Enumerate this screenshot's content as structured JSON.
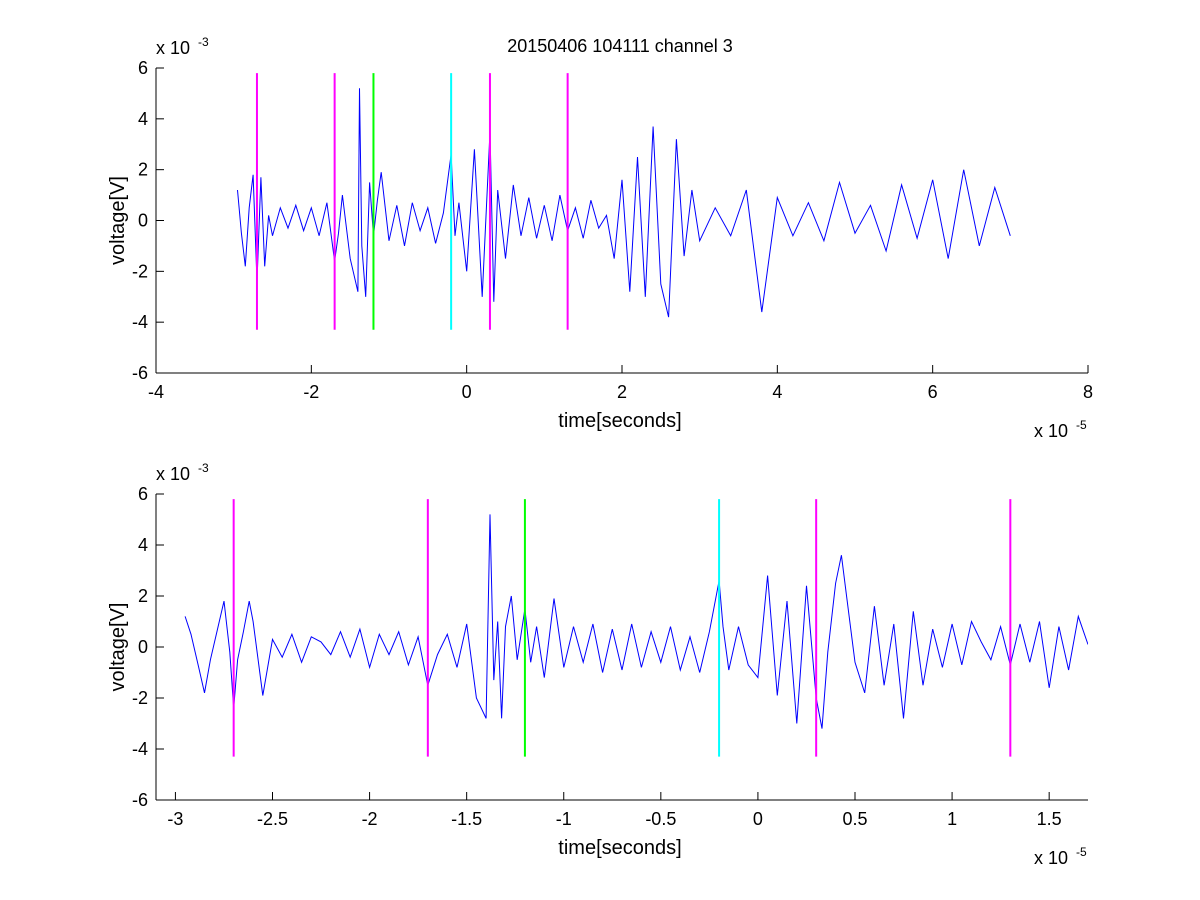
{
  "figure": {
    "title": "20150406 104111 channel 3",
    "colors": {
      "signal": "#0000ff",
      "magenta": "#ff00ff",
      "green": "#00ff00",
      "cyan": "#00ffff"
    }
  },
  "chart_data": [
    {
      "type": "line",
      "title": "20150406 104111 channel 3",
      "xlabel": "time[seconds]",
      "ylabel": "voltage[V]",
      "x_multiplier": "x 10",
      "x_exponent": "-5",
      "y_multiplier": "x 10",
      "y_exponent": "-3",
      "xlim": [
        -4,
        8
      ],
      "ylim": [
        -6,
        6
      ],
      "xticks": [
        -4,
        -2,
        0,
        2,
        4,
        6,
        8
      ],
      "xtick_labels": [
        "-4",
        "-2",
        "0",
        "2",
        "4",
        "6",
        "8"
      ],
      "yticks": [
        -6,
        -4,
        -2,
        0,
        2,
        4,
        6
      ],
      "ytick_labels": [
        "-6",
        "-4",
        "-2",
        "0",
        "2",
        "4",
        "6"
      ],
      "grid": false,
      "series": [
        {
          "color": "#0000ff",
          "x": [
            -2.95,
            -2.9,
            -2.85,
            -2.8,
            -2.75,
            -2.7,
            -2.65,
            -2.6,
            -2.55,
            -2.5,
            -2.4,
            -2.3,
            -2.2,
            -2.1,
            -2.0,
            -1.9,
            -1.8,
            -1.7,
            -1.65,
            -1.6,
            -1.5,
            -1.4,
            -1.38,
            -1.35,
            -1.3,
            -1.25,
            -1.2,
            -1.15,
            -1.1,
            -1.0,
            -0.9,
            -0.8,
            -0.7,
            -0.6,
            -0.5,
            -0.4,
            -0.3,
            -0.2,
            -0.15,
            -0.1,
            0.0,
            0.1,
            0.2,
            0.3,
            0.35,
            0.4,
            0.5,
            0.6,
            0.7,
            0.8,
            0.9,
            1.0,
            1.1,
            1.2,
            1.3,
            1.4,
            1.5,
            1.6,
            1.7,
            1.8,
            1.9,
            2.0,
            2.1,
            2.2,
            2.3,
            2.4,
            2.5,
            2.6,
            2.7,
            2.8,
            2.9,
            3.0,
            3.2,
            3.4,
            3.6,
            3.8,
            4.0,
            4.2,
            4.4,
            4.6,
            4.8,
            5.0,
            5.2,
            5.4,
            5.6,
            5.8,
            6.0,
            6.2,
            6.4,
            6.6,
            6.8,
            7.0
          ],
          "y": [
            1.2,
            -0.5,
            -1.8,
            0.5,
            1.8,
            -2.4,
            1.7,
            -1.8,
            0.2,
            -0.6,
            0.5,
            -0.3,
            0.6,
            -0.4,
            0.5,
            -0.6,
            0.7,
            -1.6,
            -0.5,
            1.0,
            -1.5,
            -2.8,
            5.2,
            -1.0,
            -3.0,
            1.5,
            -0.6,
            0.8,
            1.9,
            -0.8,
            0.6,
            -1.0,
            0.7,
            -0.4,
            0.5,
            -0.9,
            0.3,
            2.6,
            -0.6,
            0.7,
            -2.0,
            2.8,
            -3.0,
            3.5,
            -3.2,
            1.2,
            -1.5,
            1.4,
            -0.6,
            0.9,
            -0.7,
            0.6,
            -0.8,
            1.0,
            -0.4,
            0.5,
            -0.7,
            0.8,
            -0.3,
            0.2,
            -1.5,
            1.6,
            -2.8,
            2.5,
            -3.0,
            3.7,
            -2.5,
            -3.8,
            3.2,
            -1.4,
            1.2,
            -0.8,
            0.5,
            -0.6,
            1.2,
            -3.6,
            0.9,
            -0.6,
            0.7,
            -0.8,
            1.5,
            -0.5,
            0.6,
            -1.2,
            1.4,
            -0.7,
            1.6,
            -1.5,
            2.0,
            -1.0,
            1.3,
            -0.6
          ]
        }
      ],
      "markers": [
        {
          "x": -2.7,
          "color": "#ff00ff",
          "y_range": [
            -4.3,
            5.8
          ]
        },
        {
          "x": -1.7,
          "color": "#ff00ff",
          "y_range": [
            -4.3,
            5.8
          ]
        },
        {
          "x": -1.2,
          "color": "#00ff00",
          "y_range": [
            -4.3,
            5.8
          ]
        },
        {
          "x": -0.2,
          "color": "#00ffff",
          "y_range": [
            -4.3,
            5.8
          ]
        },
        {
          "x": 0.3,
          "color": "#ff00ff",
          "y_range": [
            -4.3,
            5.8
          ]
        },
        {
          "x": 1.3,
          "color": "#ff00ff",
          "y_range": [
            -4.3,
            5.8
          ]
        }
      ]
    },
    {
      "type": "line",
      "title": "",
      "xlabel": "time[seconds]",
      "ylabel": "voltage[V]",
      "x_multiplier": "x 10",
      "x_exponent": "-5",
      "y_multiplier": "x 10",
      "y_exponent": "-3",
      "xlim": [
        -3.1,
        1.7
      ],
      "ylim": [
        -6,
        6
      ],
      "xticks": [
        -3,
        -2.5,
        -2,
        -1.5,
        -1,
        -0.5,
        0,
        0.5,
        1,
        1.5
      ],
      "xtick_labels": [
        "-3",
        "-2.5",
        "-2",
        "-1.5",
        "-1",
        "-0.5",
        "0",
        "0.5",
        "1",
        "1.5"
      ],
      "yticks": [
        -6,
        -4,
        -2,
        0,
        2,
        4,
        6
      ],
      "ytick_labels": [
        "-6",
        "-4",
        "-2",
        "0",
        "2",
        "4",
        "6"
      ],
      "grid": false,
      "series": [
        {
          "color": "#0000ff",
          "x": [
            -2.95,
            -2.92,
            -2.88,
            -2.85,
            -2.82,
            -2.78,
            -2.75,
            -2.72,
            -2.7,
            -2.68,
            -2.65,
            -2.62,
            -2.6,
            -2.55,
            -2.5,
            -2.45,
            -2.4,
            -2.35,
            -2.3,
            -2.25,
            -2.2,
            -2.15,
            -2.1,
            -2.05,
            -2.0,
            -1.95,
            -1.9,
            -1.85,
            -1.8,
            -1.75,
            -1.7,
            -1.65,
            -1.6,
            -1.55,
            -1.5,
            -1.45,
            -1.4,
            -1.38,
            -1.36,
            -1.34,
            -1.32,
            -1.3,
            -1.27,
            -1.24,
            -1.2,
            -1.17,
            -1.14,
            -1.1,
            -1.05,
            -1.0,
            -0.95,
            -0.9,
            -0.85,
            -0.8,
            -0.75,
            -0.7,
            -0.65,
            -0.6,
            -0.55,
            -0.5,
            -0.45,
            -0.4,
            -0.35,
            -0.3,
            -0.25,
            -0.2,
            -0.18,
            -0.15,
            -0.1,
            -0.05,
            0.0,
            0.05,
            0.1,
            0.15,
            0.2,
            0.25,
            0.3,
            0.33,
            0.36,
            0.4,
            0.43,
            0.46,
            0.5,
            0.55,
            0.6,
            0.65,
            0.7,
            0.75,
            0.8,
            0.85,
            0.9,
            0.95,
            1.0,
            1.05,
            1.1,
            1.15,
            1.2,
            1.25,
            1.3,
            1.35,
            1.4,
            1.45,
            1.5,
            1.55,
            1.6,
            1.65,
            1.7
          ],
          "y": [
            1.2,
            0.5,
            -0.8,
            -1.8,
            -0.5,
            0.8,
            1.8,
            -0.2,
            -2.4,
            -0.5,
            0.6,
            1.8,
            1.0,
            -1.9,
            0.3,
            -0.4,
            0.5,
            -0.6,
            0.4,
            0.2,
            -0.3,
            0.6,
            -0.4,
            0.7,
            -0.8,
            0.5,
            -0.3,
            0.6,
            -0.7,
            0.4,
            -1.5,
            -0.3,
            0.5,
            -0.8,
            0.9,
            -2.0,
            -2.8,
            5.2,
            -1.3,
            1.0,
            -2.8,
            0.8,
            2.0,
            -0.5,
            1.5,
            -0.6,
            0.8,
            -1.2,
            1.9,
            -0.8,
            0.8,
            -0.6,
            0.9,
            -1.0,
            0.7,
            -0.9,
            0.9,
            -0.8,
            0.6,
            -0.6,
            0.8,
            -0.9,
            0.4,
            -1.0,
            0.6,
            2.6,
            0.8,
            -0.9,
            0.8,
            -0.7,
            -1.2,
            2.8,
            -1.9,
            1.8,
            -3.0,
            2.4,
            -2.0,
            -3.2,
            -0.2,
            2.5,
            3.6,
            1.8,
            -0.6,
            -1.8,
            1.6,
            -1.5,
            0.9,
            -2.8,
            1.4,
            -1.5,
            0.7,
            -0.8,
            0.9,
            -0.7,
            1.0,
            0.2,
            -0.5,
            0.8,
            -0.7,
            0.9,
            -0.6,
            1.0,
            -1.6,
            0.8,
            -0.9,
            1.2,
            0.1
          ]
        }
      ],
      "markers": [
        {
          "x": -2.7,
          "color": "#ff00ff",
          "y_range": [
            -4.3,
            5.8
          ]
        },
        {
          "x": -1.7,
          "color": "#ff00ff",
          "y_range": [
            -4.3,
            5.8
          ]
        },
        {
          "x": -1.2,
          "color": "#00ff00",
          "y_range": [
            -4.3,
            5.8
          ]
        },
        {
          "x": -0.2,
          "color": "#00ffff",
          "y_range": [
            -4.3,
            5.8
          ]
        },
        {
          "x": 0.3,
          "color": "#ff00ff",
          "y_range": [
            -4.3,
            5.8
          ]
        },
        {
          "x": 1.3,
          "color": "#ff00ff",
          "y_range": [
            -4.3,
            5.8
          ]
        }
      ]
    }
  ]
}
